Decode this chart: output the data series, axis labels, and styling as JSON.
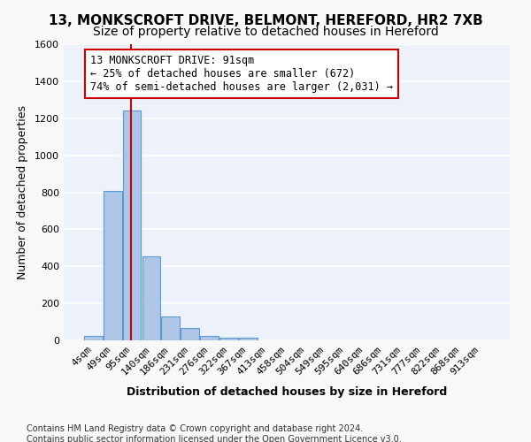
{
  "title1": "13, MONKSCROFT DRIVE, BELMONT, HEREFORD, HR2 7XB",
  "title2": "Size of property relative to detached houses in Hereford",
  "xlabel": "Distribution of detached houses by size in Hereford",
  "ylabel": "Number of detached properties",
  "bin_labels": [
    "4sqm",
    "49sqm",
    "95sqm",
    "140sqm",
    "186sqm",
    "231sqm",
    "276sqm",
    "322sqm",
    "367sqm",
    "413sqm",
    "458sqm",
    "504sqm",
    "549sqm",
    "595sqm",
    "640sqm",
    "686sqm",
    "731sqm",
    "777sqm",
    "822sqm",
    "868sqm",
    "913sqm"
  ],
  "bar_values": [
    22,
    805,
    1240,
    455,
    130,
    65,
    25,
    15,
    15,
    0,
    0,
    0,
    0,
    0,
    0,
    0,
    0,
    0,
    0,
    0,
    0
  ],
  "bar_color": "#aec6e8",
  "bar_edge_color": "#5b9bd5",
  "property_line_color": "#cc0000",
  "property_line_x": 1.97,
  "annotation_text": "13 MONKSCROFT DRIVE: 91sqm\n← 25% of detached houses are smaller (672)\n74% of semi-detached houses are larger (2,031) →",
  "annotation_box_color": "#ffffff",
  "annotation_box_edge_color": "#cc0000",
  "ylim": [
    0,
    1600
  ],
  "yticks": [
    0,
    200,
    400,
    600,
    800,
    1000,
    1200,
    1400,
    1600
  ],
  "footer_text": "Contains HM Land Registry data © Crown copyright and database right 2024.\nContains public sector information licensed under the Open Government Licence v3.0.",
  "background_color": "#edf2fa",
  "grid_color": "#ffffff",
  "fig_facecolor": "#f8f8f8",
  "title1_fontsize": 11,
  "title2_fontsize": 10,
  "xlabel_fontsize": 9,
  "ylabel_fontsize": 9,
  "tick_fontsize": 8,
  "annotation_fontsize": 8.5,
  "footer_fontsize": 7
}
